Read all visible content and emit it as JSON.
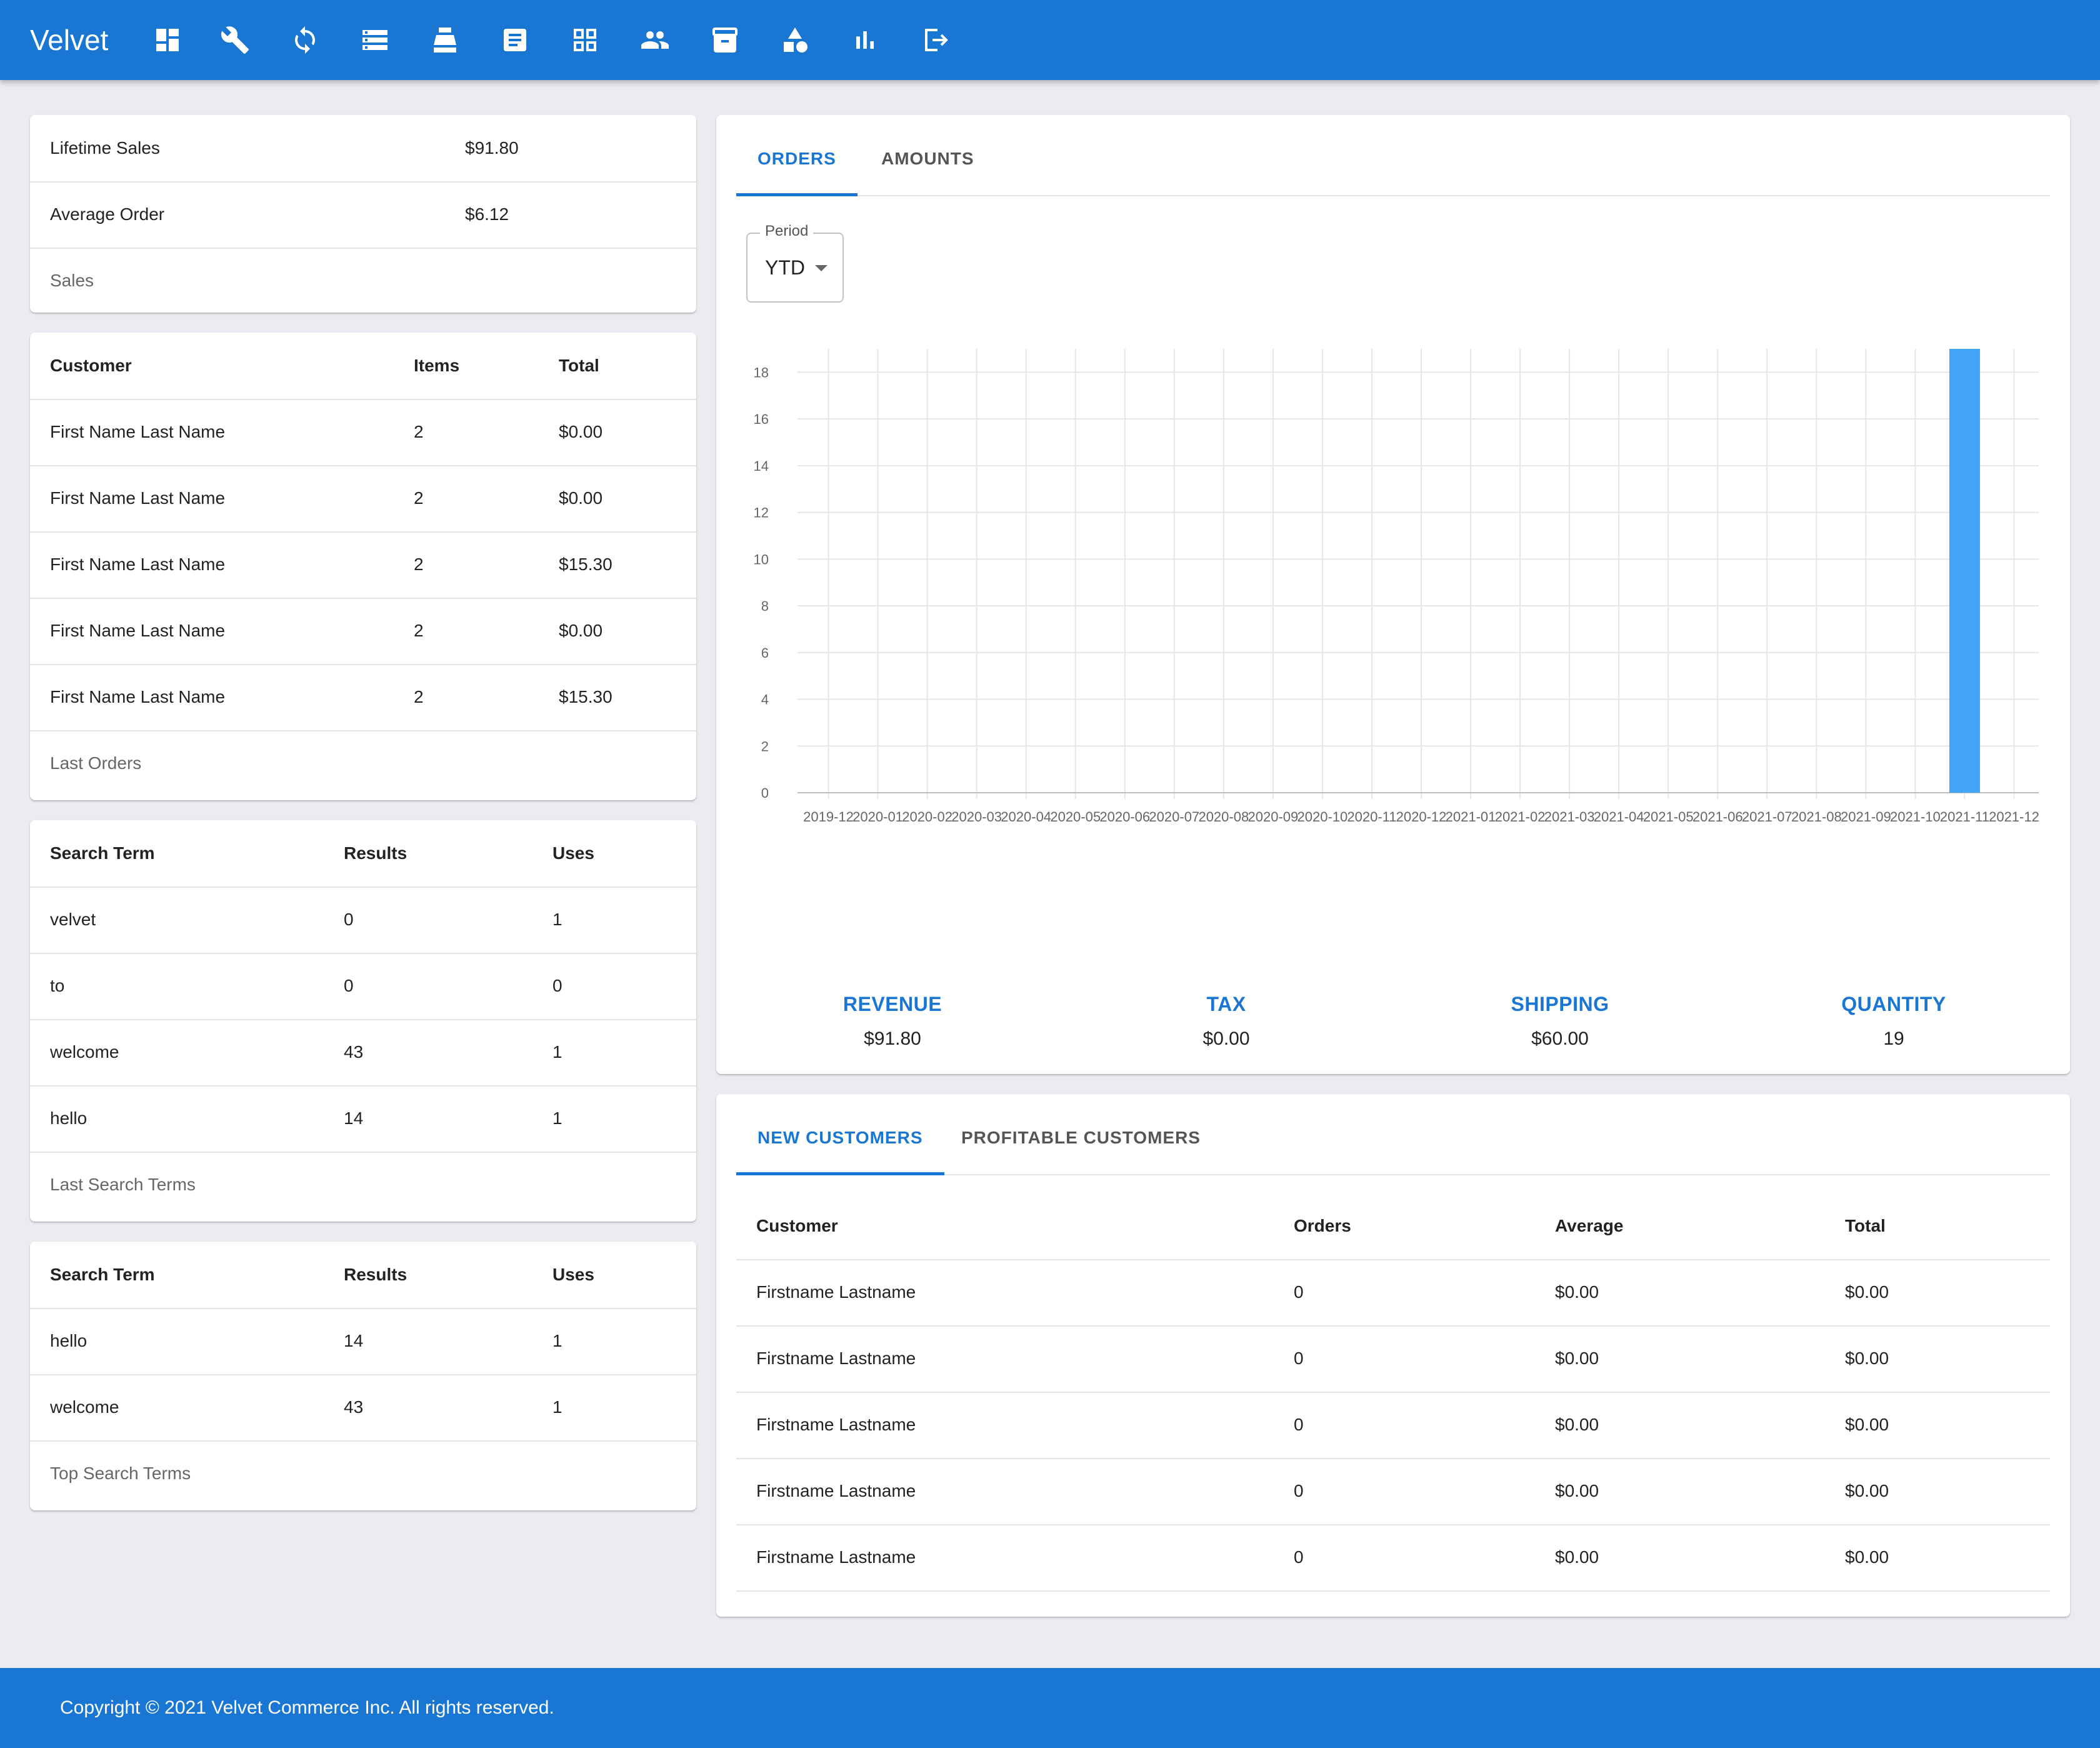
{
  "app": {
    "title": "Velvet"
  },
  "nav_icons": [
    "dashboard-icon",
    "build-icon",
    "sync-icon",
    "storage-icon",
    "cash-register-icon",
    "document-icon",
    "grid-icon",
    "people-icon",
    "archive-icon",
    "shapes-icon",
    "bar-chart-icon",
    "logout-icon"
  ],
  "sales_card": {
    "rows": [
      {
        "label": "Lifetime Sales",
        "value": "$91.80"
      },
      {
        "label": "Average Order",
        "value": "$6.12"
      }
    ],
    "caption": "Sales"
  },
  "last_orders": {
    "headers": [
      "Customer",
      "Items",
      "Total"
    ],
    "rows": [
      [
        "First Name Last Name",
        "2",
        "$0.00"
      ],
      [
        "First Name Last Name",
        "2",
        "$0.00"
      ],
      [
        "First Name Last Name",
        "2",
        "$15.30"
      ],
      [
        "First Name Last Name",
        "2",
        "$0.00"
      ],
      [
        "First Name Last Name",
        "2",
        "$15.30"
      ]
    ],
    "caption": "Last Orders"
  },
  "last_search_terms": {
    "headers": [
      "Search Term",
      "Results",
      "Uses"
    ],
    "rows": [
      [
        "velvet",
        "0",
        "1"
      ],
      [
        "to",
        "0",
        "0"
      ],
      [
        "welcome",
        "43",
        "1"
      ],
      [
        "hello",
        "14",
        "1"
      ]
    ],
    "caption": "Last Search Terms"
  },
  "top_search_terms": {
    "headers": [
      "Search Term",
      "Results",
      "Uses"
    ],
    "rows": [
      [
        "hello",
        "14",
        "1"
      ],
      [
        "welcome",
        "43",
        "1"
      ]
    ],
    "caption": "Top Search Terms"
  },
  "orders_card": {
    "tabs": [
      {
        "label": "ORDERS",
        "active": true
      },
      {
        "label": "AMOUNTS",
        "active": false
      }
    ],
    "period": {
      "label": "Period",
      "value": "YTD"
    },
    "summary": [
      {
        "label": "REVENUE",
        "value": "$91.80"
      },
      {
        "label": "TAX",
        "value": "$0.00"
      },
      {
        "label": "SHIPPING",
        "value": "$60.00"
      },
      {
        "label": "QUANTITY",
        "value": "19"
      }
    ]
  },
  "chart_data": {
    "type": "bar",
    "categories": [
      "2019-12",
      "2020-01",
      "2020-02",
      "2020-03",
      "2020-04",
      "2020-05",
      "2020-06",
      "2020-07",
      "2020-08",
      "2020-09",
      "2020-10",
      "2020-11",
      "2020-12",
      "2021-01",
      "2021-02",
      "2021-03",
      "2021-04",
      "2021-05",
      "2021-06",
      "2021-07",
      "2021-08",
      "2021-09",
      "2021-10",
      "2021-11",
      "2021-12"
    ],
    "values": [
      0,
      0,
      0,
      0,
      0,
      0,
      0,
      0,
      0,
      0,
      0,
      0,
      0,
      0,
      0,
      0,
      0,
      0,
      0,
      0,
      0,
      0,
      0,
      19,
      0
    ],
    "ylim": [
      0,
      19
    ],
    "yticks": [
      0,
      2,
      4,
      6,
      8,
      10,
      12,
      14,
      16,
      18
    ],
    "grid": true,
    "bar_color": "#42a5f5"
  },
  "customers_card": {
    "tabs": [
      {
        "label": "NEW CUSTOMERS",
        "active": true
      },
      {
        "label": "PROFITABLE CUSTOMERS",
        "active": false
      }
    ],
    "headers": [
      "Customer",
      "Orders",
      "Average",
      "Total"
    ],
    "rows": [
      [
        "Firstname Lastname",
        "0",
        "$0.00",
        "$0.00"
      ],
      [
        "Firstname Lastname",
        "0",
        "$0.00",
        "$0.00"
      ],
      [
        "Firstname Lastname",
        "0",
        "$0.00",
        "$0.00"
      ],
      [
        "Firstname Lastname",
        "0",
        "$0.00",
        "$0.00"
      ],
      [
        "Firstname Lastname",
        "0",
        "$0.00",
        "$0.00"
      ]
    ]
  },
  "footer": {
    "copyright": "Copyright © 2021 Velvet Commerce Inc. All rights reserved."
  },
  "colors": {
    "primary": "#1976d2",
    "background": "#eaecf1",
    "bar": "#42a5f5"
  }
}
